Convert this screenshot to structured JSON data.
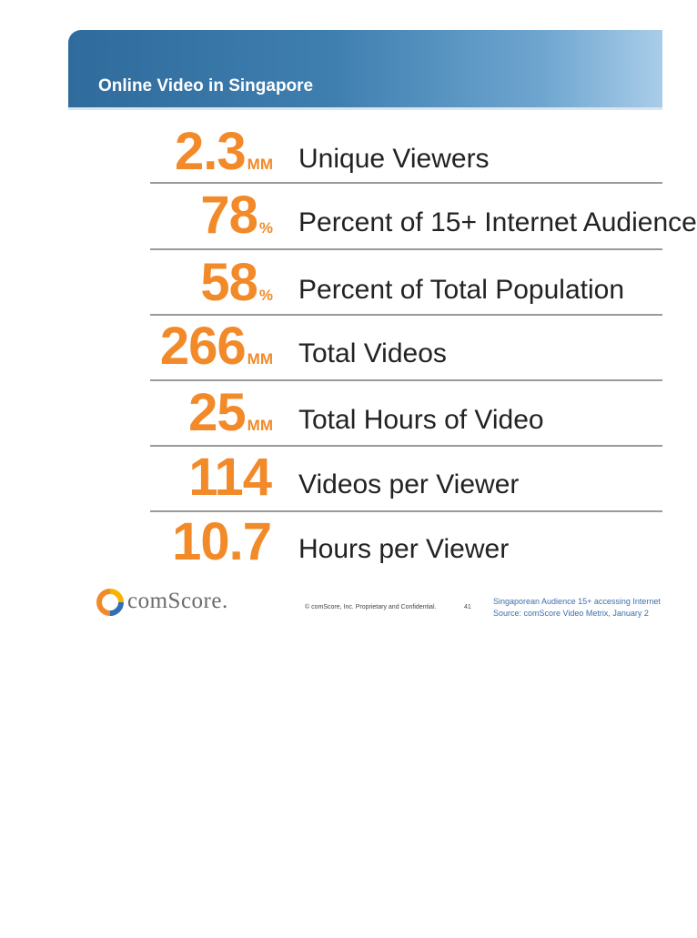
{
  "header": {
    "title": "Online Video in Singapore"
  },
  "stats": [
    {
      "value": "2.3",
      "unit": "MM",
      "label": "Unique Viewers"
    },
    {
      "value": "78",
      "unit": "%",
      "label": "Percent of 15+ Internet Audience"
    },
    {
      "value": "58",
      "unit": "%",
      "label": "Percent of Total Population"
    },
    {
      "value": "266",
      "unit": "MM",
      "label": "Total Videos"
    },
    {
      "value": "25",
      "unit": "MM",
      "label": "Total Hours of Video"
    },
    {
      "value": "114",
      "unit": "",
      "label": "Videos per Viewer"
    },
    {
      "value": "10.7",
      "unit": "",
      "label": "Hours per Viewer"
    }
  ],
  "footer": {
    "logo_text": "comScore.",
    "copyright": "© comScore, Inc.  Proprietary and Confidential.",
    "page_number": "41",
    "note_audience": "Singaporean Audience 15+ accessing Internet",
    "note_source": "Source:  comScore Video Metrix, January 2"
  },
  "colors": {
    "accent": "#f28a2a",
    "banner": "#3f7fb0",
    "note": "#3b6fb0"
  }
}
